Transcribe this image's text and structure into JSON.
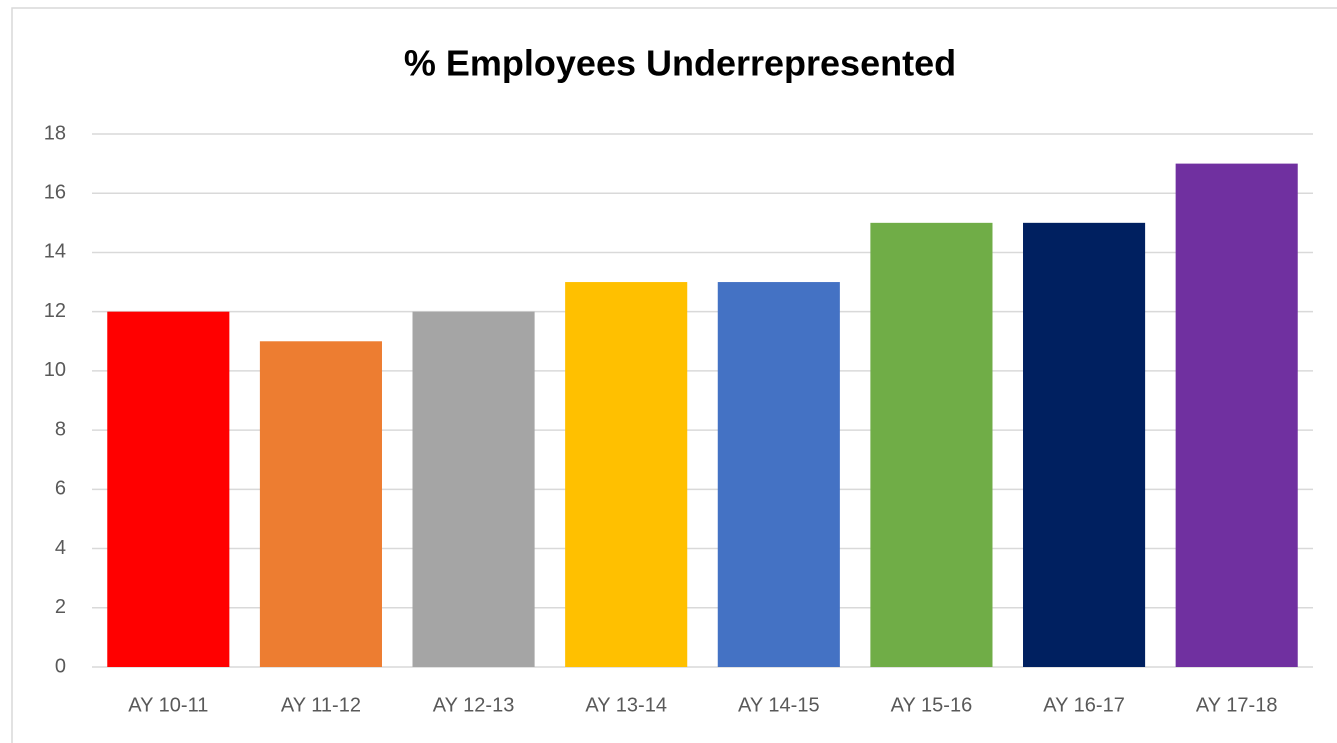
{
  "chart_data": {
    "type": "bar",
    "title": "% Employees Underrepresented",
    "categories": [
      "AY 10-11",
      "AY 11-12",
      "AY 12-13",
      "AY 13-14",
      "AY 14-15",
      "AY 15-16",
      "AY 16-17",
      "AY 17-18"
    ],
    "values": [
      12,
      11,
      12,
      13,
      13,
      15,
      15,
      17
    ],
    "colors": [
      "#ff0000",
      "#ed7d31",
      "#a5a5a5",
      "#ffc000",
      "#4472c4",
      "#70ad47",
      "#002060",
      "#7030a0"
    ],
    "ylim": [
      0,
      18
    ],
    "yticks": [
      0,
      2,
      4,
      6,
      8,
      10,
      12,
      14,
      16,
      18
    ],
    "grid": true
  }
}
